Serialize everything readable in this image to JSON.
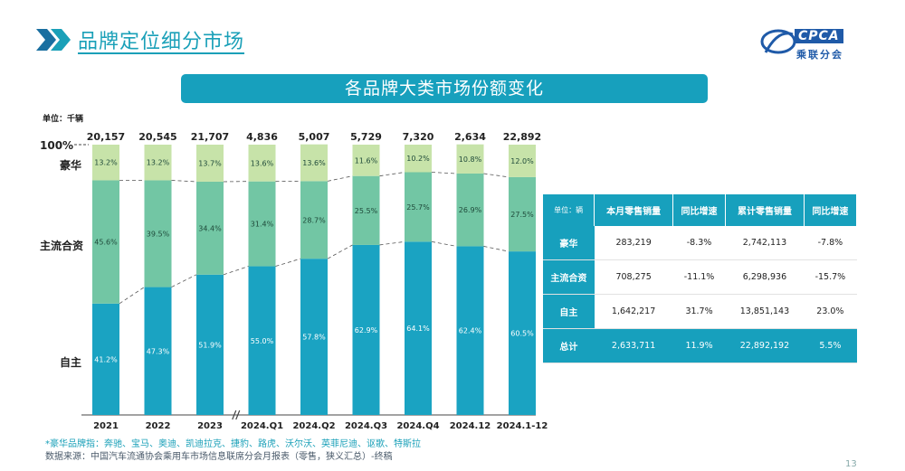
{
  "header": {
    "title": "品牌定位细分市场"
  },
  "logo": {
    "brand": "CPCA",
    "sub": "乘联分会"
  },
  "banner": {
    "title": "各品牌大类市场份额变化"
  },
  "unit_label": "单位：千辆",
  "left_labels": {
    "percent": "100%",
    "luxury": "豪华",
    "mainstream": "主流合资",
    "domestic": "自主"
  },
  "footnotes": [
    "*豪华品牌指：奔驰、宝马、奥迪、凯迪拉克、捷豹、路虎、沃尔沃、英菲尼迪、讴歌、特斯拉",
    "数据来源：中国汽车流通协会乘用车市场信息联席分会月报表（零售，狭义汇总）-终稿"
  ],
  "page_number": "13",
  "colors": {
    "domestic": "#1aa3c2",
    "mainstream": "#72c6a4",
    "luxury": "#c7e3a9",
    "accent": "#17a0bd"
  },
  "chart_data": {
    "type": "bar",
    "stacked": "100%",
    "categories": [
      "2021",
      "2022",
      "2023",
      "2024.Q1",
      "2024.Q2",
      "2024.Q3",
      "2024.Q4",
      "2024.12",
      "2024.1-12"
    ],
    "totals": [
      "20,157",
      "20,545",
      "21,707",
      "4,836",
      "5,007",
      "5,729",
      "7,320",
      "2,634",
      "22,892"
    ],
    "series": [
      {
        "name": "自主",
        "values": [
          41.2,
          47.3,
          51.9,
          55.0,
          57.8,
          62.9,
          64.1,
          62.4,
          60.5
        ],
        "labels": [
          "41.2%",
          "47.3%",
          "51.9%",
          "55.0%",
          "57.8%",
          "62.9%",
          "64.1%",
          "62.4%",
          "60.5%"
        ]
      },
      {
        "name": "主流合资",
        "values": [
          45.6,
          39.5,
          34.4,
          31.4,
          28.7,
          25.5,
          25.7,
          26.9,
          27.5
        ],
        "labels": [
          "45.6%",
          "39.5%",
          "34.4%",
          "31.4%",
          "28.7%",
          "25.5%",
          "25.7%",
          "26.9%",
          "27.5%"
        ]
      },
      {
        "name": "豪华",
        "values": [
          13.2,
          13.2,
          13.7,
          13.6,
          13.6,
          11.6,
          10.2,
          10.8,
          12.0
        ],
        "labels": [
          "13.2%",
          "13.2%",
          "13.7%",
          "13.6%",
          "13.6%",
          "11.6%",
          "10.2%",
          "10.8%",
          "12.0%"
        ]
      }
    ],
    "ylim": [
      0,
      100
    ],
    "axis_break_after": "2023"
  },
  "table": {
    "headers": [
      "单位：辆",
      "本月零售销量",
      "同比增速",
      "累计零售销量",
      "同比增速"
    ],
    "rows": [
      [
        "豪华",
        "283,219",
        "-8.3%",
        "2,742,113",
        "-7.8%"
      ],
      [
        "主流合资",
        "708,275",
        "-11.1%",
        "6,298,936",
        "-15.7%"
      ],
      [
        "自主",
        "1,642,217",
        "31.7%",
        "13,851,143",
        "23.0%"
      ]
    ],
    "total": [
      "总计",
      "2,633,711",
      "11.9%",
      "22,892,192",
      "5.5%"
    ]
  }
}
